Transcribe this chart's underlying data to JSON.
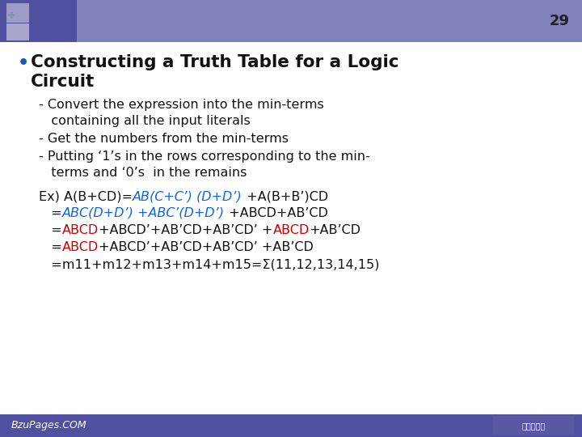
{
  "slide_number": "29",
  "bg_color": "#ffffff",
  "header_left_color": "#5555aa",
  "header_right_color": "#8888bb",
  "footer_color": "#5555aa",
  "title_line1": "Constructing a Truth Table for a Logic",
  "title_line2": "Circuit",
  "bullet_items": [
    "- Convert the expression into the min-terms",
    "   containing all the input literals",
    "- Get the numbers from the min-terms",
    "- Putting ‘1’s in the rows corresponding to the min-",
    "   terms and ‘0’s  in the remains"
  ],
  "footer_text": "BzuPages.COM",
  "text_color": "#111111",
  "blue_color": "#1166dd",
  "red_color": "#cc0000",
  "title_color": "#111111"
}
